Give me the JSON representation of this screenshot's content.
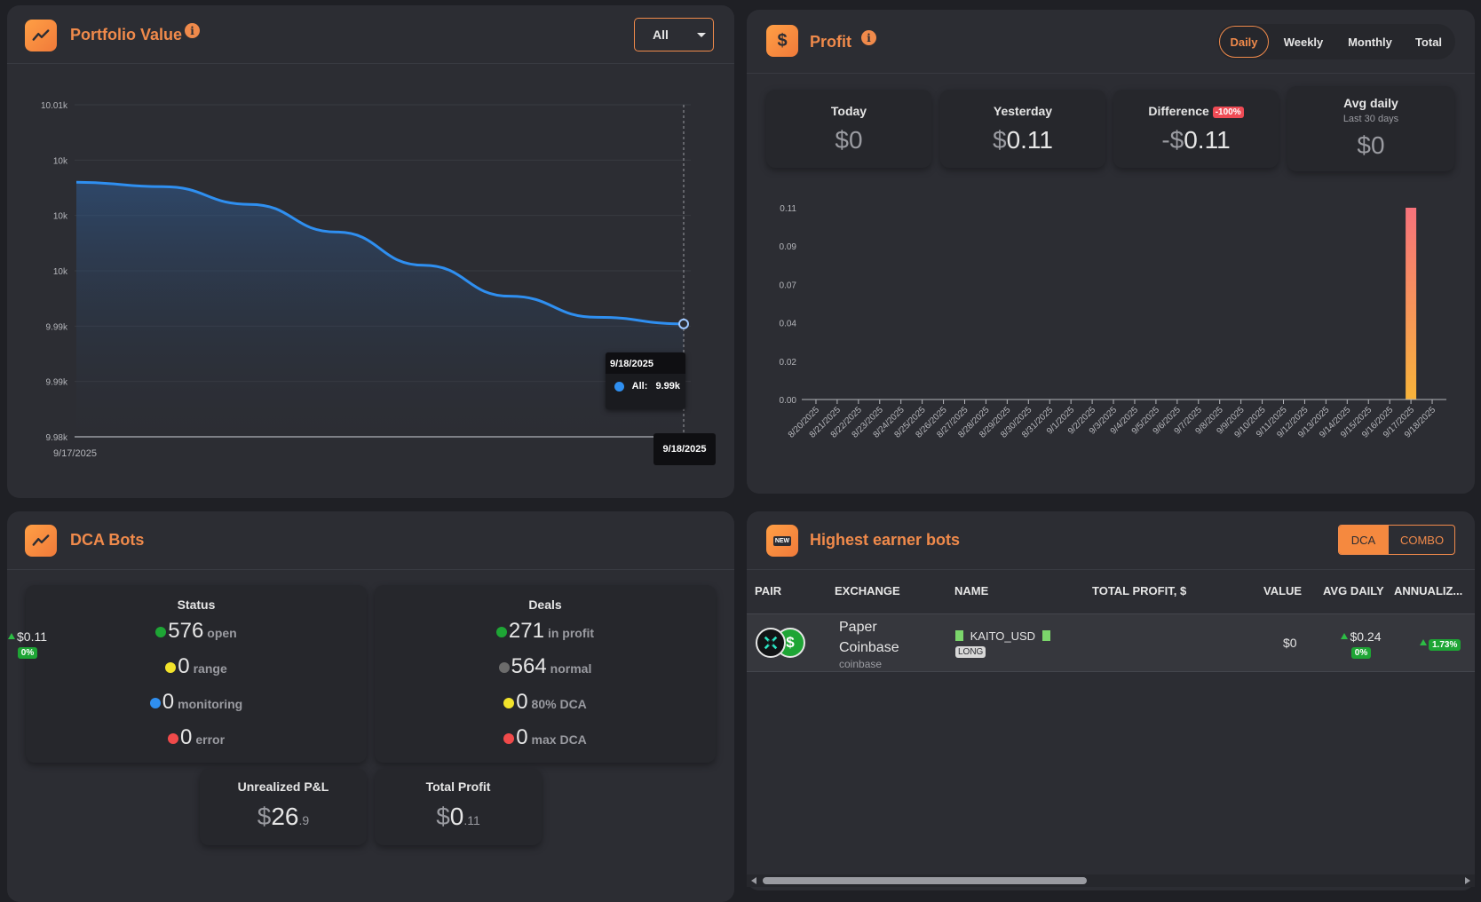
{
  "portfolio": {
    "title": "Portfolio Value",
    "filter": "All",
    "y_ticks": [
      "10.01k",
      "10k",
      "10k",
      "10k",
      "9.99k",
      "9.99k",
      "9.98k"
    ],
    "x_start": "9/17/2025",
    "tooltip_date": "9/18/2025",
    "tooltip_series": "All:",
    "tooltip_value": "9.99k",
    "axis_marker_date": "9/18/2025",
    "chart_data": {
      "type": "area",
      "series": [
        {
          "name": "All",
          "values": [
            10003,
            10002.6,
            10001,
            9998.5,
            9995.5,
            9992.7,
            9990.8,
            9990.2
          ]
        }
      ],
      "x": [
        "9/17/2025",
        "",
        "",
        "",
        "",
        "",
        "",
        "9/18/2025"
      ],
      "ylim": [
        9980,
        10010
      ]
    }
  },
  "profit": {
    "title": "Profit",
    "tabs": [
      "Daily",
      "Weekly",
      "Monthly",
      "Total"
    ],
    "cards": {
      "today_label": "Today",
      "today_cur": "$",
      "today_val": "0",
      "yesterday_label": "Yesterday",
      "yesterday_cur": "$",
      "yesterday_val": "0.11",
      "difference_label": "Difference",
      "difference_badge": "-100%",
      "difference_cur": "-$",
      "difference_val": "0.11",
      "avg_label": "Avg daily",
      "avg_sub": "Last 30 days",
      "avg_cur": "$",
      "avg_val": "0"
    },
    "y_ticks": [
      "0.11",
      "0.09",
      "0.07",
      "0.04",
      "0.02",
      "0.00"
    ],
    "chart_data": {
      "type": "bar",
      "categories": [
        "8/20/2025",
        "8/21/2025",
        "8/22/2025",
        "8/23/2025",
        "8/24/2025",
        "8/25/2025",
        "8/26/2025",
        "8/27/2025",
        "8/28/2025",
        "8/29/2025",
        "8/30/2025",
        "8/31/2025",
        "9/1/2025",
        "9/2/2025",
        "9/3/2025",
        "9/4/2025",
        "9/5/2025",
        "9/6/2025",
        "9/7/2025",
        "9/8/2025",
        "9/9/2025",
        "9/10/2025",
        "9/11/2025",
        "9/12/2025",
        "9/13/2025",
        "9/14/2025",
        "9/15/2025",
        "9/16/2025",
        "9/17/2025",
        "9/18/2025"
      ],
      "values": [
        0,
        0,
        0,
        0,
        0,
        0,
        0,
        0,
        0,
        0,
        0,
        0,
        0,
        0,
        0,
        0,
        0,
        0,
        0,
        0,
        0,
        0,
        0,
        0,
        0,
        0,
        0,
        0,
        0.11,
        0
      ],
      "ylim": [
        0,
        0.11
      ]
    }
  },
  "dca": {
    "title": "DCA Bots",
    "status_label": "Status",
    "status": [
      {
        "value": "576",
        "text": "open",
        "color": "#1ea535"
      },
      {
        "value": "0",
        "text": "range",
        "color": "#f2e32b"
      },
      {
        "value": "0",
        "text": "monitoring",
        "color": "#2f8ff0"
      },
      {
        "value": "0",
        "text": "error",
        "color": "#f04a4a"
      }
    ],
    "deals_label": "Deals",
    "deals": [
      {
        "value": "271",
        "text": "in profit",
        "color": "#1ea535"
      },
      {
        "value": "564",
        "text": "normal",
        "color": "#6c6c6c"
      },
      {
        "value": "0",
        "text": "80% DCA",
        "color": "#f2e32b"
      },
      {
        "value": "0",
        "text": "max DCA",
        "color": "#f04a4a"
      }
    ],
    "unrealized_label": "Unrealized P&L",
    "unrealized_cur": "$",
    "unrealized_int": "26",
    "unrealized_dec": ".9",
    "total_profit_label": "Total Profit",
    "total_profit_cur": "$",
    "total_profit_int": "0",
    "total_profit_dec": ".11"
  },
  "earners": {
    "title": "Highest earner bots",
    "icon_text": "NEW",
    "tabs": [
      "DCA",
      "COMBO"
    ],
    "columns": [
      "PAIR",
      "EXCHANGE",
      "NAME",
      "TOTAL PROFIT, $",
      "VALUE",
      "AVG DAILY",
      "ANNUALIZ..."
    ],
    "row": {
      "exchange_line1": "Paper",
      "exchange_line2": "Coinbase",
      "exchange_sub": "coinbase",
      "name": "KAITO_USD",
      "side": "LONG",
      "total_profit": "$0.11",
      "total_profit_pct": "0%",
      "value": "$0",
      "avg_daily": "$0.24",
      "avg_daily_pct": "0%",
      "annualized": "1.73%"
    }
  }
}
